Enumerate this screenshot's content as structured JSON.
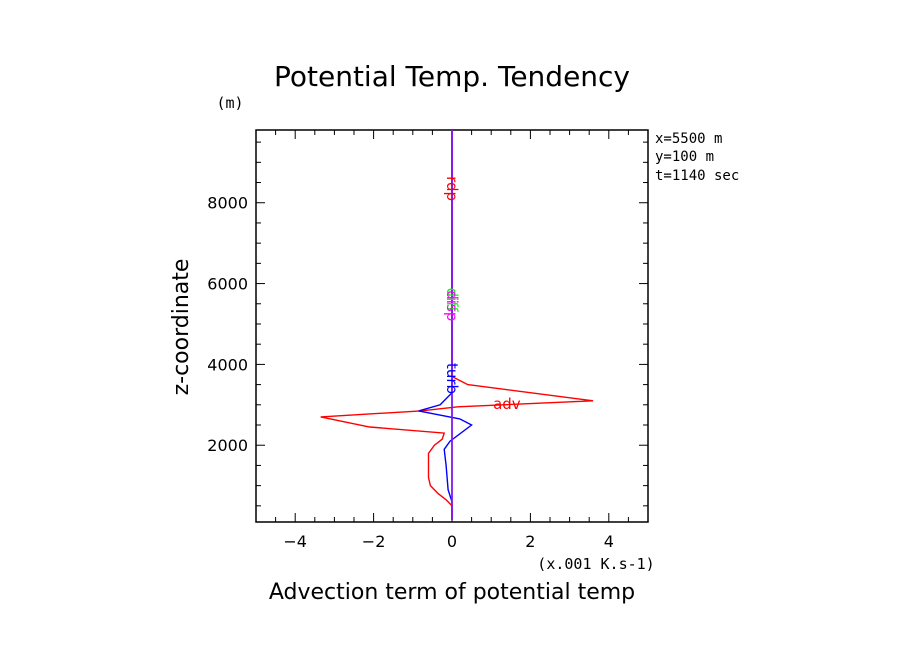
{
  "chart_data": {
    "type": "line",
    "title": "Potential Temp. Tendency",
    "xlabel": "Advection term of potential temp",
    "ylabel": "z-coordinate",
    "x_unit": "(x.001 K.s-1)",
    "y_unit": "(m)",
    "xlim": [
      -5,
      5
    ],
    "ylim": [
      100,
      9800
    ],
    "x_ticks": [
      -4,
      -2,
      0,
      2,
      4
    ],
    "y_ticks": [
      2000,
      4000,
      6000,
      8000
    ],
    "grid": false,
    "info": [
      "x=5500 m",
      "y=100 m",
      "t=1140 sec"
    ],
    "series": [
      {
        "name": "adv",
        "color": "#ff0000",
        "label_at": [
          1.4,
          2900
        ],
        "label_rotated": false,
        "points": [
          [
            0,
            150
          ],
          [
            0,
            500
          ],
          [
            -0.15,
            650
          ],
          [
            -0.35,
            800
          ],
          [
            -0.55,
            1000
          ],
          [
            -0.6,
            1200
          ],
          [
            -0.6,
            1800
          ],
          [
            -0.45,
            2000
          ],
          [
            -0.25,
            2150
          ],
          [
            -0.2,
            2300
          ],
          [
            -2.1,
            2450
          ],
          [
            -3.35,
            2700
          ],
          [
            -0.8,
            2850
          ],
          [
            0.15,
            2950
          ],
          [
            3.6,
            3100
          ],
          [
            0.4,
            3500
          ],
          [
            0,
            3700
          ],
          [
            0,
            9800
          ]
        ]
      },
      {
        "name": "turb",
        "color": "#0000ff",
        "label_at": [
          0,
          3650
        ],
        "label_rotated": true,
        "points": [
          [
            0,
            150
          ],
          [
            0,
            600
          ],
          [
            -0.1,
            900
          ],
          [
            -0.15,
            1500
          ],
          [
            -0.2,
            1900
          ],
          [
            -0.05,
            2100
          ],
          [
            0.5,
            2500
          ],
          [
            0.2,
            2650
          ],
          [
            -0.85,
            2850
          ],
          [
            -0.3,
            3000
          ],
          [
            0,
            3300
          ],
          [
            0,
            9800
          ]
        ]
      },
      {
        "name": "diff",
        "color": "#00ff00",
        "label_at": [
          0,
          5600
        ],
        "label_rotated": true,
        "points": [
          [
            0,
            150
          ],
          [
            0,
            9800
          ]
        ]
      },
      {
        "name": "disp",
        "color": "#ff00ff",
        "label_at": [
          0,
          5450
        ],
        "label_rotated": true,
        "points": [
          [
            0,
            150
          ],
          [
            0,
            9800
          ]
        ]
      },
      {
        "name": "",
        "color": "#7f00ff",
        "points": [
          [
            0,
            150
          ],
          [
            0,
            9800
          ]
        ]
      },
      {
        "name": "rdp",
        "color": "#ff0000",
        "label_at": [
          0,
          8350
        ],
        "label_rotated": true,
        "points": []
      }
    ]
  }
}
